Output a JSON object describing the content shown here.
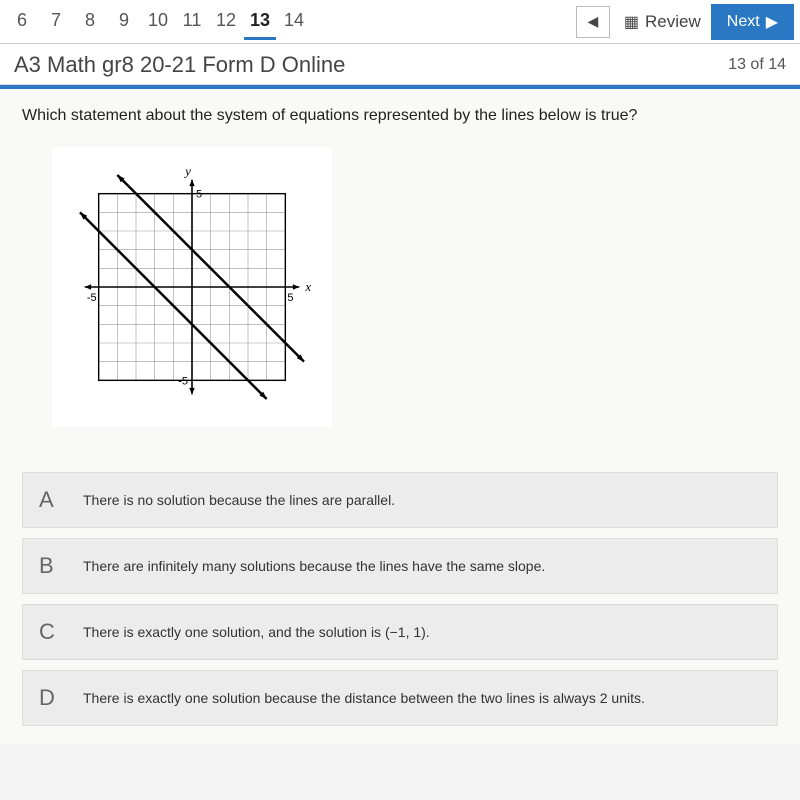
{
  "nav": {
    "questions": [
      "6",
      "7",
      "8",
      "9",
      "10",
      "11",
      "12",
      "13",
      "14"
    ],
    "active": "13",
    "prev_icon": "◀",
    "review_label": "Review",
    "next_label": "Next",
    "next_icon": "▶"
  },
  "header": {
    "title": "A3 Math gr8 20-21 Form D Online",
    "counter": "13 of 14"
  },
  "question": {
    "stem": "Which statement about the system of equations represented by the lines below is true?"
  },
  "chart": {
    "type": "line",
    "xlim": [
      -6,
      6
    ],
    "ylim": [
      -6,
      6
    ],
    "tick_step": 1,
    "axis_labels": {
      "x": "x",
      "y": "y",
      "xmin": "-5",
      "xmax": "5",
      "ymin": "-5",
      "ymax": "5"
    },
    "grid_color": "#999999",
    "axis_color": "#000000",
    "line_color": "#000000",
    "line_width": 2.5,
    "background_color": "#ffffff",
    "lines": [
      {
        "points": [
          [
            -6,
            4
          ],
          [
            4,
            -6
          ]
        ]
      },
      {
        "points": [
          [
            -4,
            6
          ],
          [
            6,
            -4
          ]
        ]
      }
    ],
    "arrow_size": 7
  },
  "answers": [
    {
      "letter": "A",
      "text": "There is no solution because the lines are parallel."
    },
    {
      "letter": "B",
      "text": "There are infinitely many solutions because the lines have the same slope."
    },
    {
      "letter": "C",
      "text": "There is exactly one solution, and the solution is (−1, 1)."
    },
    {
      "letter": "D",
      "text": "There is exactly one solution because the distance between the two lines is always 2 units."
    }
  ],
  "colors": {
    "accent": "#2a78c4"
  }
}
